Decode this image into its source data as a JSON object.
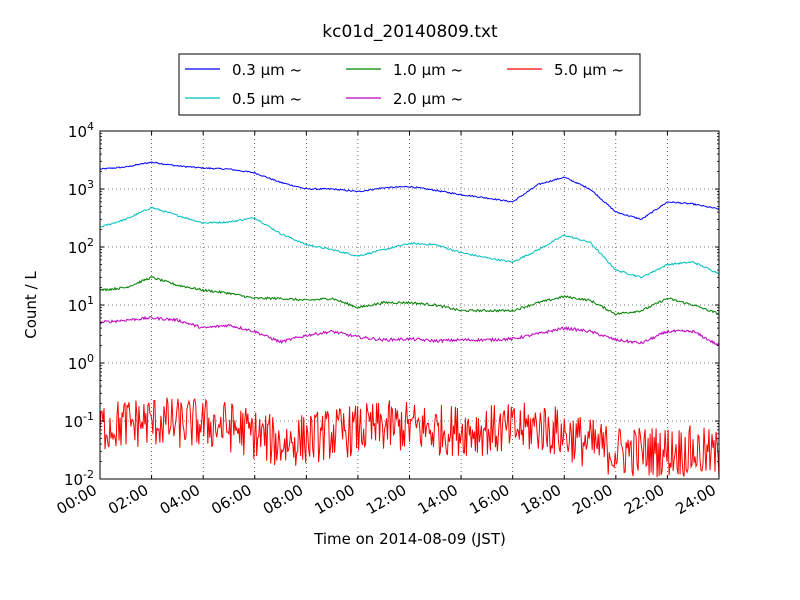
{
  "chart_data": {
    "type": "line",
    "title": "kc01d_20140809.txt",
    "xlabel": "Time on 2014-08-09 (JST)",
    "ylabel": "Count / L",
    "yscale": "log",
    "grid": true,
    "legend_location": "top-center",
    "xlim": [
      "00:00",
      "24:00"
    ],
    "ylim": [
      0.01,
      10000
    ],
    "x_ticks": [
      "00:00",
      "02:00",
      "04:00",
      "06:00",
      "08:00",
      "10:00",
      "12:00",
      "14:00",
      "16:00",
      "18:00",
      "20:00",
      "22:00",
      "24:00"
    ],
    "y_ticks": [
      {
        "value": 0.01,
        "base": "10",
        "exp": "-2"
      },
      {
        "value": 0.1,
        "base": "10",
        "exp": "-1"
      },
      {
        "value": 1,
        "base": "10",
        "exp": "0"
      },
      {
        "value": 10,
        "base": "10",
        "exp": "1"
      },
      {
        "value": 100,
        "base": "10",
        "exp": "2"
      },
      {
        "value": 1000,
        "base": "10",
        "exp": "3"
      },
      {
        "value": 10000,
        "base": "10",
        "exp": "4"
      }
    ],
    "x": [
      "00:00",
      "01:00",
      "02:00",
      "03:00",
      "04:00",
      "05:00",
      "06:00",
      "07:00",
      "08:00",
      "09:00",
      "10:00",
      "11:00",
      "12:00",
      "13:00",
      "14:00",
      "15:00",
      "16:00",
      "17:00",
      "18:00",
      "19:00",
      "20:00",
      "21:00",
      "22:00",
      "23:00",
      "24:00"
    ],
    "series": [
      {
        "name": "0.3 μm ~",
        "color": "#0000ff",
        "noise": 0.012,
        "values": [
          2200,
          2400,
          2900,
          2500,
          2300,
          2200,
          1900,
          1300,
          1000,
          1000,
          900,
          1050,
          1100,
          950,
          800,
          700,
          600,
          1200,
          1600,
          1000,
          400,
          300,
          600,
          550,
          450
        ]
      },
      {
        "name": "0.5 μm ~",
        "color": "#00bfbf",
        "noise": 0.015,
        "values": [
          220,
          300,
          480,
          350,
          260,
          270,
          320,
          170,
          110,
          90,
          70,
          90,
          115,
          110,
          80,
          65,
          55,
          90,
          160,
          120,
          40,
          30,
          50,
          55,
          35
        ]
      },
      {
        "name": "1.0 μm ~",
        "color": "#008000",
        "noise": 0.02,
        "values": [
          18,
          20,
          30,
          22,
          18,
          16,
          13,
          13,
          12,
          13,
          9,
          11,
          11,
          10,
          8,
          8,
          8,
          11,
          14,
          12,
          7,
          8,
          13,
          10,
          7
        ]
      },
      {
        "name": "2.0 μm ~",
        "color": "#bf00bf",
        "noise": 0.025,
        "values": [
          5,
          5.5,
          6,
          5.5,
          4,
          4.5,
          3.5,
          2.3,
          3,
          3.5,
          2.8,
          2.5,
          2.6,
          2.4,
          2.5,
          2.5,
          2.6,
          3.2,
          4,
          3.5,
          2.5,
          2.2,
          3.5,
          3.5,
          2
        ]
      },
      {
        "name": "5.0 μm ~",
        "color": "#ff0000",
        "noise": 0.45,
        "values": [
          0.08,
          0.09,
          0.1,
          0.09,
          0.09,
          0.08,
          0.06,
          0.04,
          0.05,
          0.06,
          0.07,
          0.08,
          0.08,
          0.07,
          0.07,
          0.07,
          0.07,
          0.08,
          0.06,
          0.04,
          0.03,
          0.03,
          0.03,
          0.03,
          0.025
        ]
      }
    ]
  }
}
